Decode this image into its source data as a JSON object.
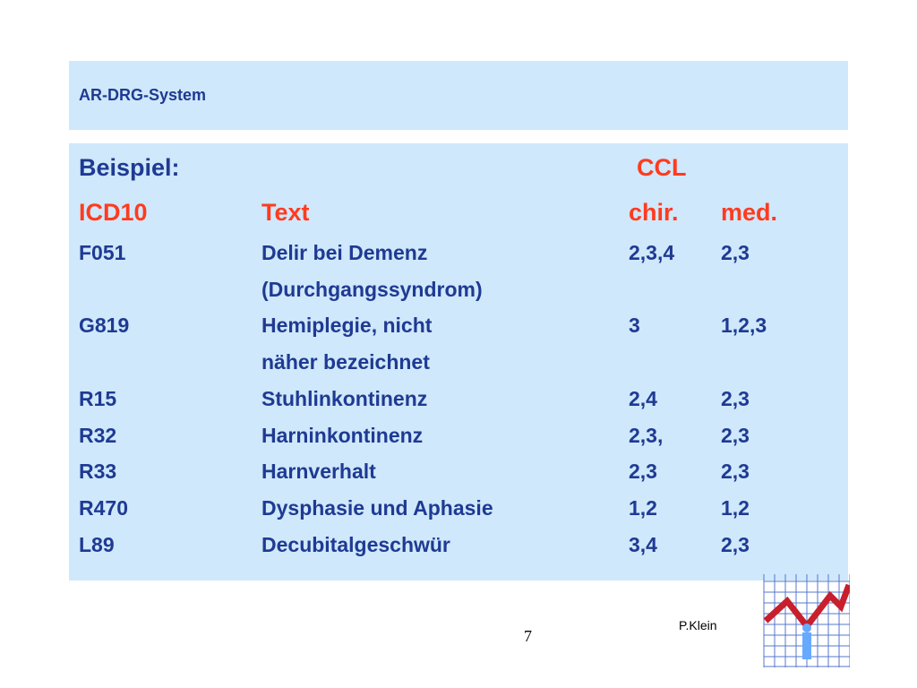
{
  "header": {
    "title": "AR-DRG-System"
  },
  "table": {
    "label": "Beispiel:",
    "group_label": "CCL",
    "columns": [
      "ICD10",
      "Text",
      "chir.",
      "med."
    ],
    "rows": [
      {
        "code": "F051",
        "text": "Delir bei Demenz",
        "chir": "2,3,4",
        "med": "2,3"
      },
      {
        "code": "",
        "text": "(Durchgangssyndrom)",
        "chir": "",
        "med": ""
      },
      {
        "code": "G819",
        "text": "Hemiplegie, nicht",
        "chir": "3",
        "med": "1,2,3"
      },
      {
        "code": "",
        "text": " näher bezeichnet",
        "chir": "",
        "med": ""
      },
      {
        "code": "R15",
        "text": "Stuhlinkontinenz",
        "chir": "2,4",
        "med": "2,3"
      },
      {
        "code": "R32",
        "text": "Harninkontinenz",
        "chir": "2,3,",
        "med": "2,3"
      },
      {
        "code": "R33",
        "text": "Harnverhalt",
        "chir": "2,3",
        "med": "2,3"
      },
      {
        "code": "R470",
        "text": "Dysphasie und Aphasie",
        "chir": "1,2",
        "med": "1,2"
      },
      {
        "code": "L89",
        "text": "Decubitalgeschwür",
        "chir": "3,4",
        "med": "2,3"
      }
    ]
  },
  "footer": {
    "page_number": "7",
    "author": "P.Klein"
  },
  "colors": {
    "panel": "#cfe8fb",
    "text": "#1f3a93",
    "accent": "#ff3b1f"
  }
}
